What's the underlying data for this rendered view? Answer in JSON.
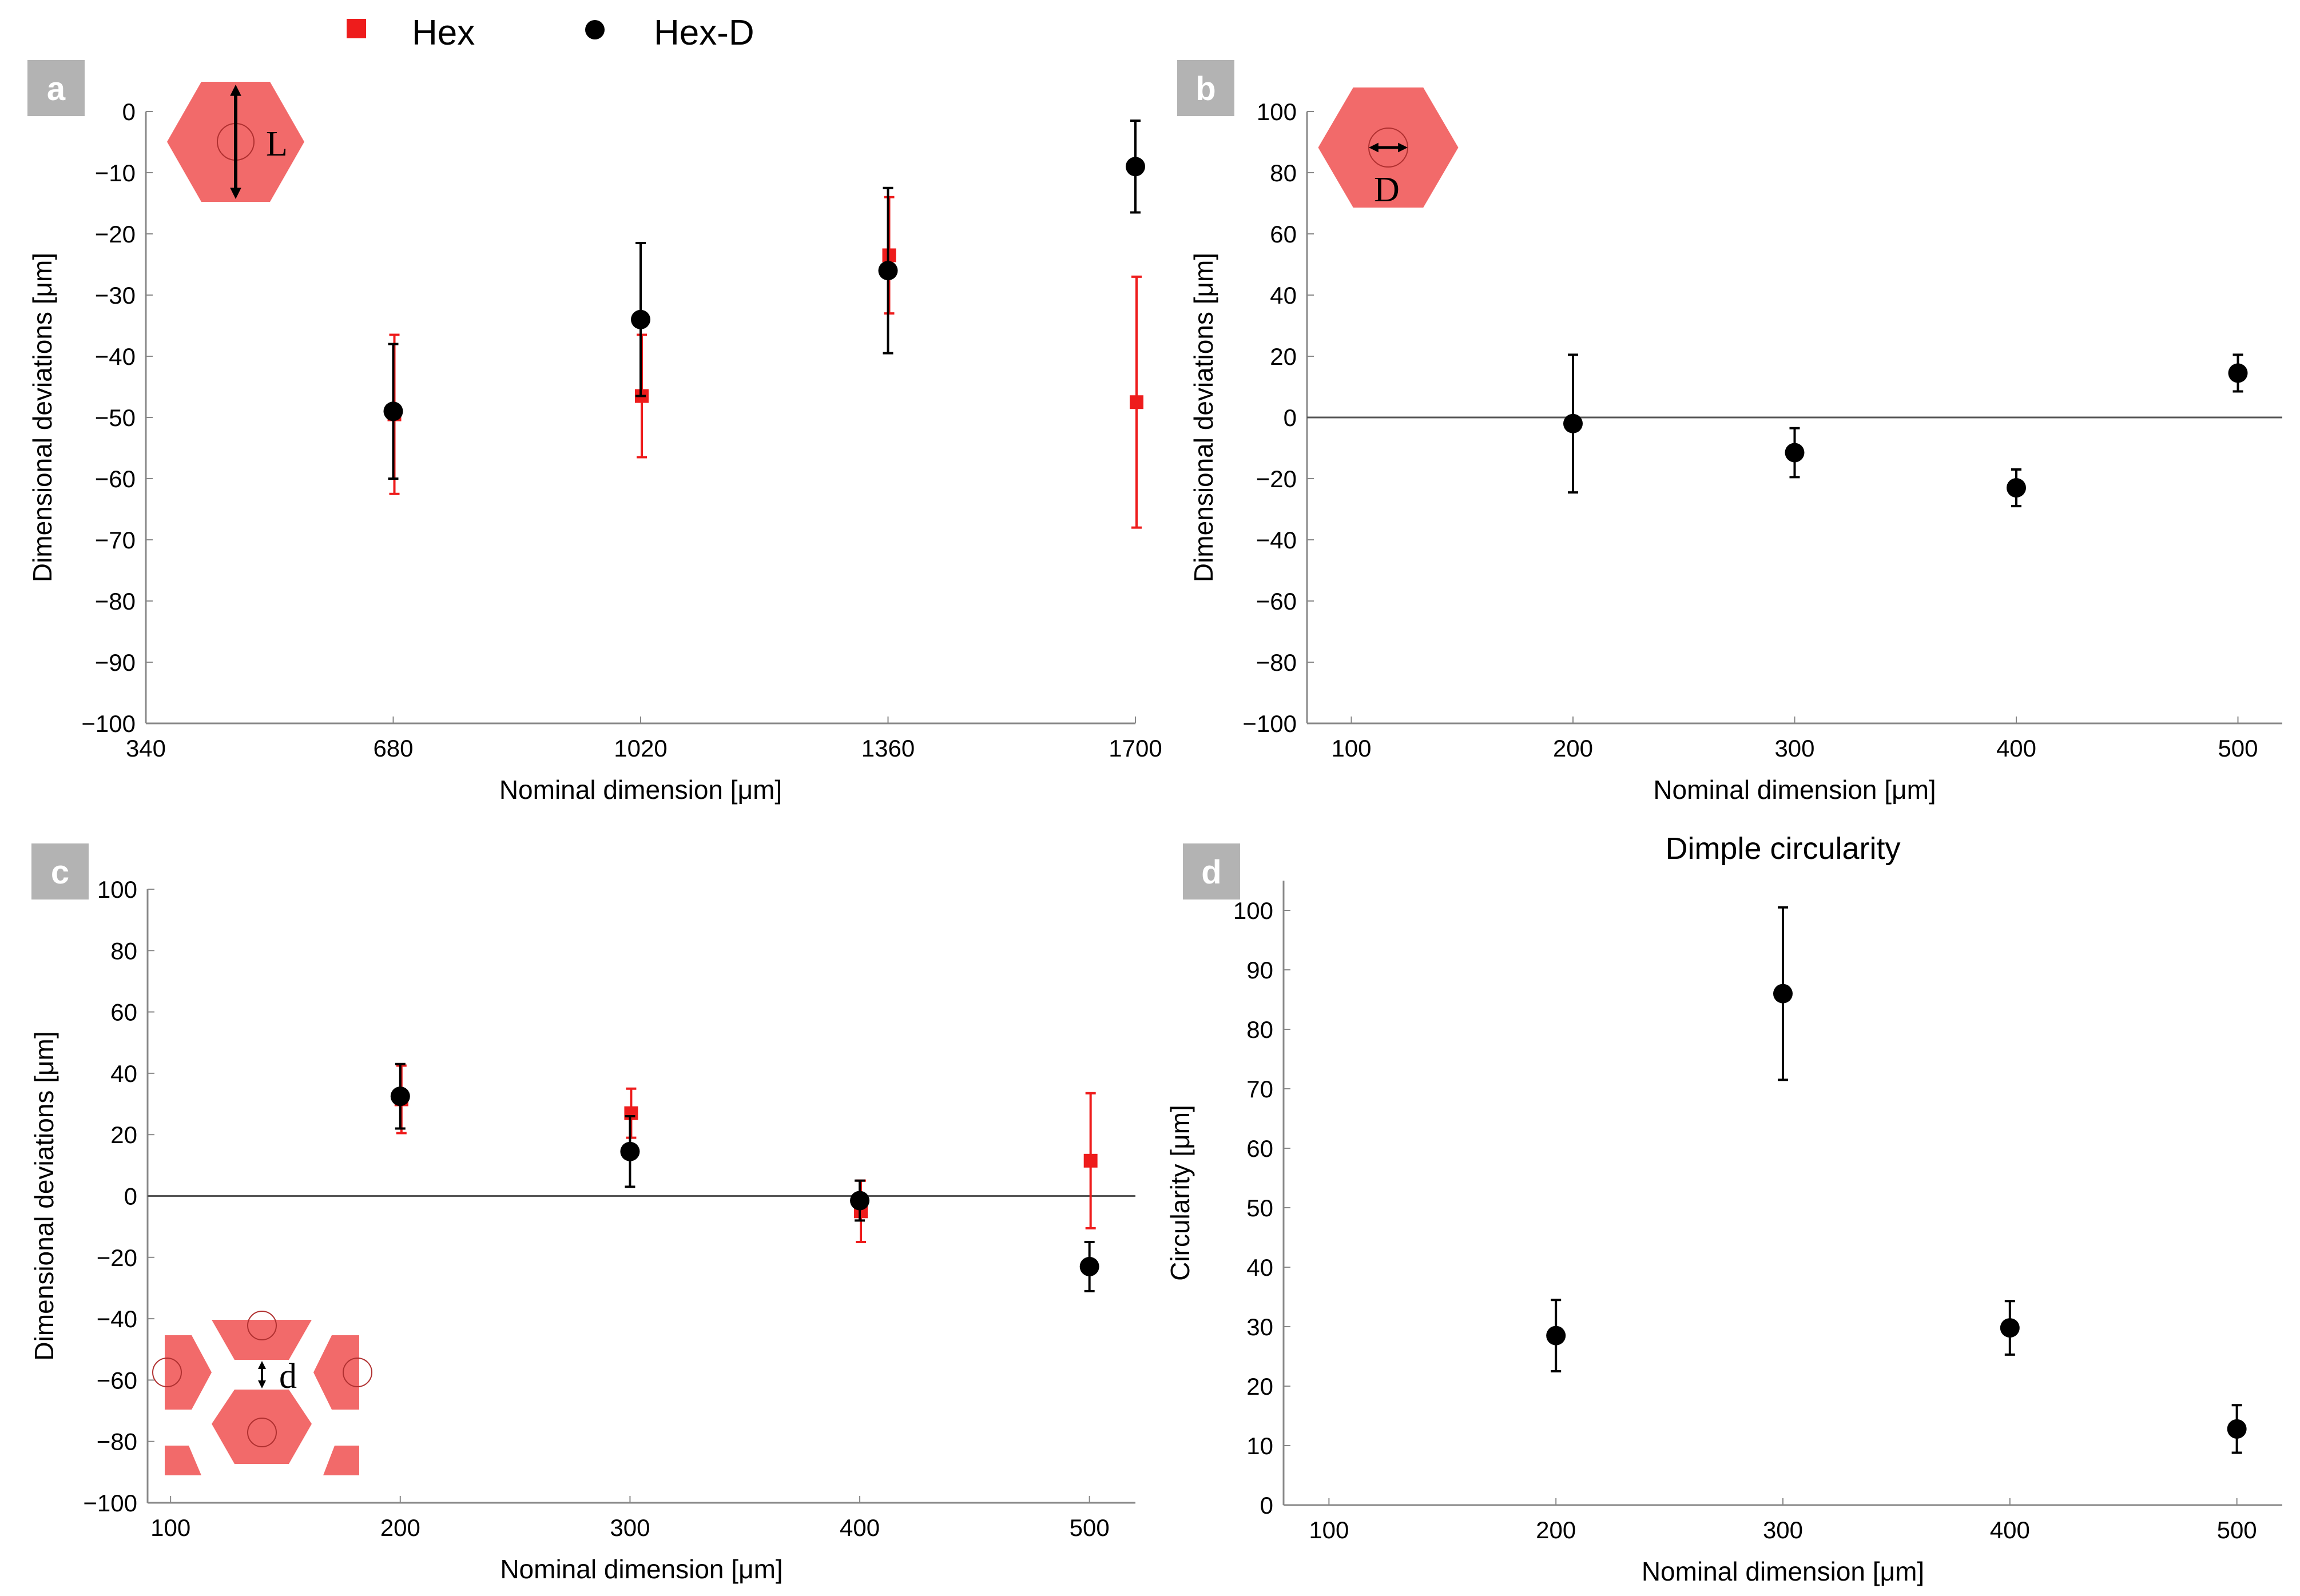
{
  "legend": {
    "hex": "Hex",
    "hexd": "Hex-D"
  },
  "colors": {
    "hex": "#ee1c1c",
    "hexd": "#000000",
    "inset_fill": "#f26a6a",
    "label_bg": "#b3b3b3"
  },
  "chart_data": [
    {
      "panel": "a",
      "type": "scatter",
      "title": "",
      "xlabel": "Nominal dimension  [μm]",
      "ylabel": "Dimensional deviations  [μm]",
      "xlim": [
        340,
        1700
      ],
      "ylim": [
        -100,
        0
      ],
      "xticks": [
        340,
        680,
        1020,
        1360,
        1700
      ],
      "yticks": [
        -100,
        -90,
        -80,
        -70,
        -60,
        -50,
        -40,
        -30,
        -20,
        -10,
        0
      ],
      "zero_line": false,
      "inset": "L",
      "series": [
        {
          "name": "Hex",
          "marker": "square",
          "x": [
            680,
            1020,
            1360,
            1700
          ],
          "y": [
            -49.5,
            -46.5,
            -23.5,
            -47.5
          ],
          "err": [
            13,
            10,
            9.5,
            20.5
          ]
        },
        {
          "name": "Hex-D",
          "marker": "circle",
          "x": [
            680,
            1020,
            1360,
            1700
          ],
          "y": [
            -49,
            -34,
            -26,
            -9
          ],
          "err": [
            11,
            12.5,
            13.5,
            7.5
          ]
        }
      ]
    },
    {
      "panel": "b",
      "type": "scatter",
      "title": "",
      "xlabel": "Nominal dimension  [μm]",
      "ylabel": "Dimensional deviations  [μm]",
      "xlim": [
        80,
        520
      ],
      "ylim": [
        -100,
        100
      ],
      "xticks": [
        100,
        200,
        300,
        400,
        500
      ],
      "yticks": [
        -100,
        -80,
        -60,
        -40,
        -20,
        0,
        20,
        40,
        60,
        80,
        100
      ],
      "zero_line": true,
      "inset": "D",
      "series": [
        {
          "name": "Hex-D",
          "marker": "circle",
          "x": [
            200,
            300,
            400,
            500
          ],
          "y": [
            -2,
            -11.5,
            -23,
            14.5
          ],
          "err": [
            22.5,
            8,
            6,
            6
          ]
        }
      ]
    },
    {
      "panel": "c",
      "type": "scatter",
      "title": "",
      "xlabel": "Nominal dimension  [μm]",
      "ylabel": "Dimensional deviations  [μm]",
      "xlim": [
        90,
        520
      ],
      "ylim": [
        -100,
        100
      ],
      "xticks": [
        100,
        200,
        300,
        400,
        500
      ],
      "yticks": [
        -100,
        -80,
        -60,
        -40,
        -20,
        0,
        20,
        40,
        60,
        80,
        100
      ],
      "zero_line": true,
      "inset": "d",
      "series": [
        {
          "name": "Hex",
          "marker": "square",
          "x": [
            200,
            300,
            400,
            500
          ],
          "y": [
            31.5,
            27,
            -5,
            11.5
          ],
          "err": [
            11,
            8,
            10,
            22
          ]
        },
        {
          "name": "Hex-D",
          "marker": "circle",
          "x": [
            200,
            300,
            400,
            500
          ],
          "y": [
            32.5,
            14.5,
            -1.5,
            -23
          ],
          "err": [
            10.5,
            11.5,
            6.5,
            8
          ]
        }
      ]
    },
    {
      "panel": "d",
      "type": "scatter",
      "title": "Dimple circularity",
      "xlabel": "Nominal dimension  [μm]",
      "ylabel": "Circularity  [μm]",
      "xlim": [
        80,
        520
      ],
      "ylim": [
        0,
        105
      ],
      "xticks": [
        100,
        200,
        300,
        400,
        500
      ],
      "yticks": [
        0,
        10,
        20,
        30,
        40,
        50,
        60,
        70,
        80,
        90,
        100
      ],
      "zero_line": false,
      "inset": "",
      "series": [
        {
          "name": "Hex-D",
          "marker": "circle",
          "x": [
            200,
            300,
            400,
            500
          ],
          "y": [
            28.5,
            86,
            29.8,
            12.8
          ],
          "err": [
            6,
            14.5,
            4.5,
            4
          ]
        }
      ]
    }
  ]
}
